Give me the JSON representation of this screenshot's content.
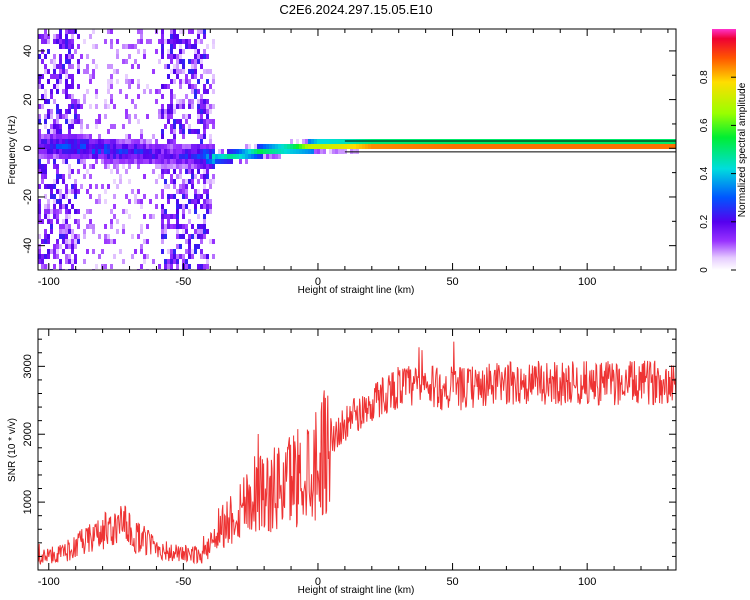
{
  "title": "C2E6.2024.297.15.05.E10",
  "chart_data": [
    {
      "type": "heatmap",
      "xlabel": "Height of straight line (km)",
      "ylabel": "Frequency (Hz)",
      "xlim": [
        -104,
        133
      ],
      "ylim": [
        -50,
        49
      ],
      "xticks": [
        -100,
        -50,
        0,
        50,
        100
      ],
      "yticks": [
        -40,
        -20,
        0,
        20,
        40
      ],
      "colorbar": {
        "label": "Normalized spectral amplitude",
        "range": [
          0,
          1
        ],
        "ticks": [
          0.0,
          0.2,
          0.4,
          0.6,
          0.8
        ]
      },
      "ridge": {
        "x": [
          -104,
          -95,
          -85,
          -75,
          -65,
          -55,
          -45,
          -38,
          -30,
          -20,
          -10,
          0,
          10,
          20,
          50,
          100,
          133
        ],
        "y": [
          1,
          1,
          0,
          -1,
          -2,
          -3,
          -3,
          -4,
          -3,
          -1,
          0,
          1,
          1,
          1,
          1,
          1,
          1
        ]
      },
      "peak_amplitude": {
        "x": [
          -104,
          -95,
          -85,
          -75,
          -65,
          -55,
          -45,
          -38,
          -30,
          -20,
          -10,
          0,
          10,
          20,
          50,
          100,
          133
        ],
        "y": [
          0.25,
          0.3,
          0.32,
          0.3,
          0.28,
          0.2,
          0.3,
          0.45,
          0.5,
          0.55,
          0.6,
          0.75,
          0.8,
          0.9,
          0.92,
          0.92,
          0.92
        ]
      },
      "grid": false
    },
    {
      "type": "line",
      "xlabel": "Height of straight line (km)",
      "ylabel": "SNR (10 * v/v)",
      "xlim": [
        -104,
        133
      ],
      "ylim": [
        0,
        3550
      ],
      "xticks": [
        -100,
        -50,
        0,
        50,
        100
      ],
      "yticks": [
        1000,
        2000,
        3000
      ],
      "color": "#ee3333",
      "series": [
        {
          "x": [
            -104,
            -95,
            -85,
            -78,
            -72,
            -68,
            -62,
            -55,
            -48,
            -42,
            -38,
            -34,
            -30,
            -26,
            -22,
            -18,
            -14,
            -10,
            -5,
            0,
            5,
            10,
            15,
            20,
            25,
            30,
            35,
            40,
            50,
            60,
            70,
            80,
            90,
            100,
            110,
            120,
            133
          ],
          "y": [
            180,
            250,
            450,
            600,
            650,
            500,
            380,
            250,
            230,
            220,
            600,
            700,
            850,
            1050,
            1200,
            1100,
            1250,
            1350,
            1450,
            1650,
            1900,
            2150,
            2300,
            2450,
            2600,
            2700,
            2700,
            2700,
            2650,
            2700,
            2750,
            2750,
            2750,
            2750,
            2750,
            2750,
            2800
          ]
        }
      ],
      "grid": false
    }
  ]
}
